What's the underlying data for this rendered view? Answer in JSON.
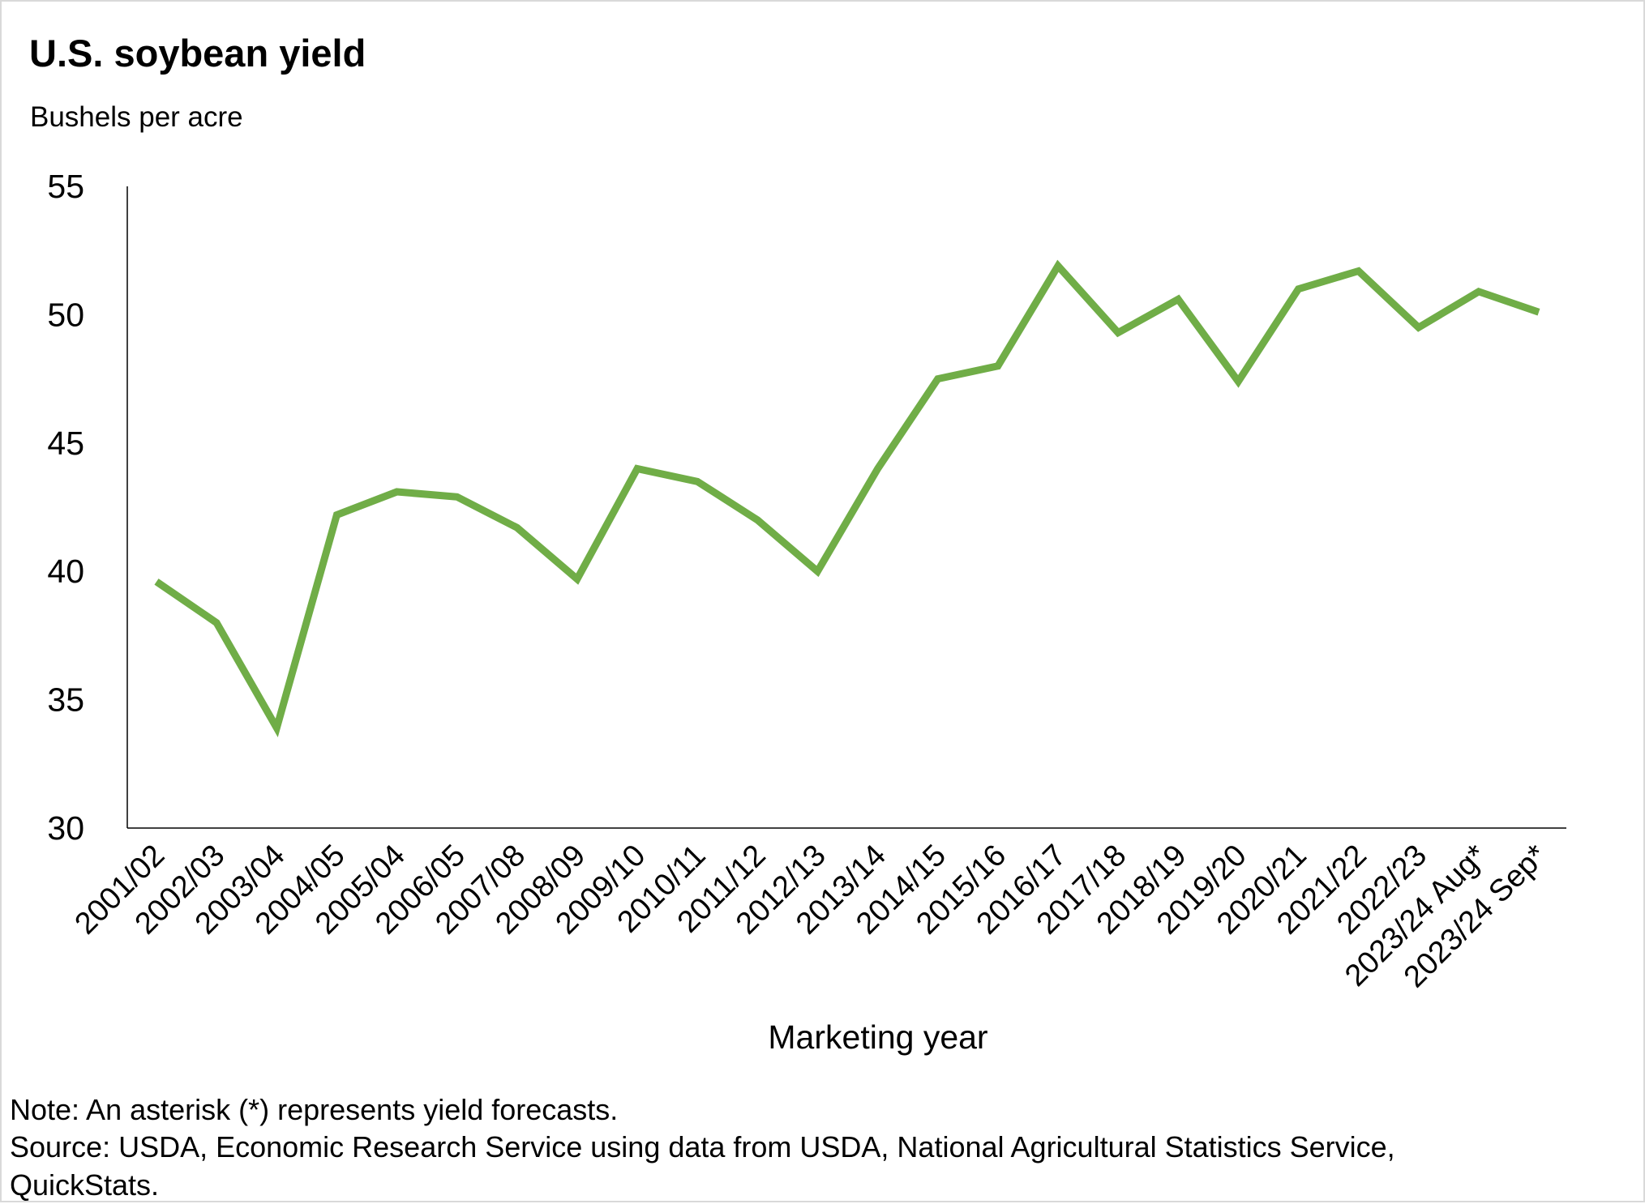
{
  "chart_data": {
    "type": "line",
    "title": "U.S. soybean yield",
    "subtitle": "Bushels per acre",
    "xlabel": "Marketing year",
    "ylabel": "",
    "ylim": [
      30,
      55
    ],
    "yticks": [
      30,
      35,
      40,
      45,
      50,
      55
    ],
    "categories": [
      "2001/02",
      "2002/03",
      "2003/04",
      "2004/05",
      "2005/04",
      "2006/05",
      "2007/08",
      "2008/09",
      "2009/10",
      "2010/11",
      "2011/12",
      "2012/13",
      "2013/14",
      "2014/15",
      "2015/16",
      "2016/17",
      "2017/18",
      "2018/19",
      "2019/20",
      "2020/21",
      "2021/22",
      "2022/23",
      "2023/24 Aug*",
      "2023/24 Sep*"
    ],
    "series": [
      {
        "color": "#70ad47",
        "values": [
          39.6,
          38.0,
          33.9,
          42.2,
          43.1,
          42.9,
          41.7,
          39.7,
          44.0,
          43.5,
          42.0,
          40.0,
          44.0,
          47.5,
          48.0,
          51.9,
          49.3,
          50.6,
          47.4,
          51.0,
          51.7,
          49.5,
          50.9,
          50.1
        ]
      }
    ],
    "grid": false,
    "legend": "none"
  },
  "notes": {
    "note": "Note: An asterisk (*) represents yield forecasts.",
    "source_line1": "Source: USDA, Economic Research Service using data from USDA, National Agricultural Statistics Service,",
    "source_line2": "QuickStats."
  }
}
